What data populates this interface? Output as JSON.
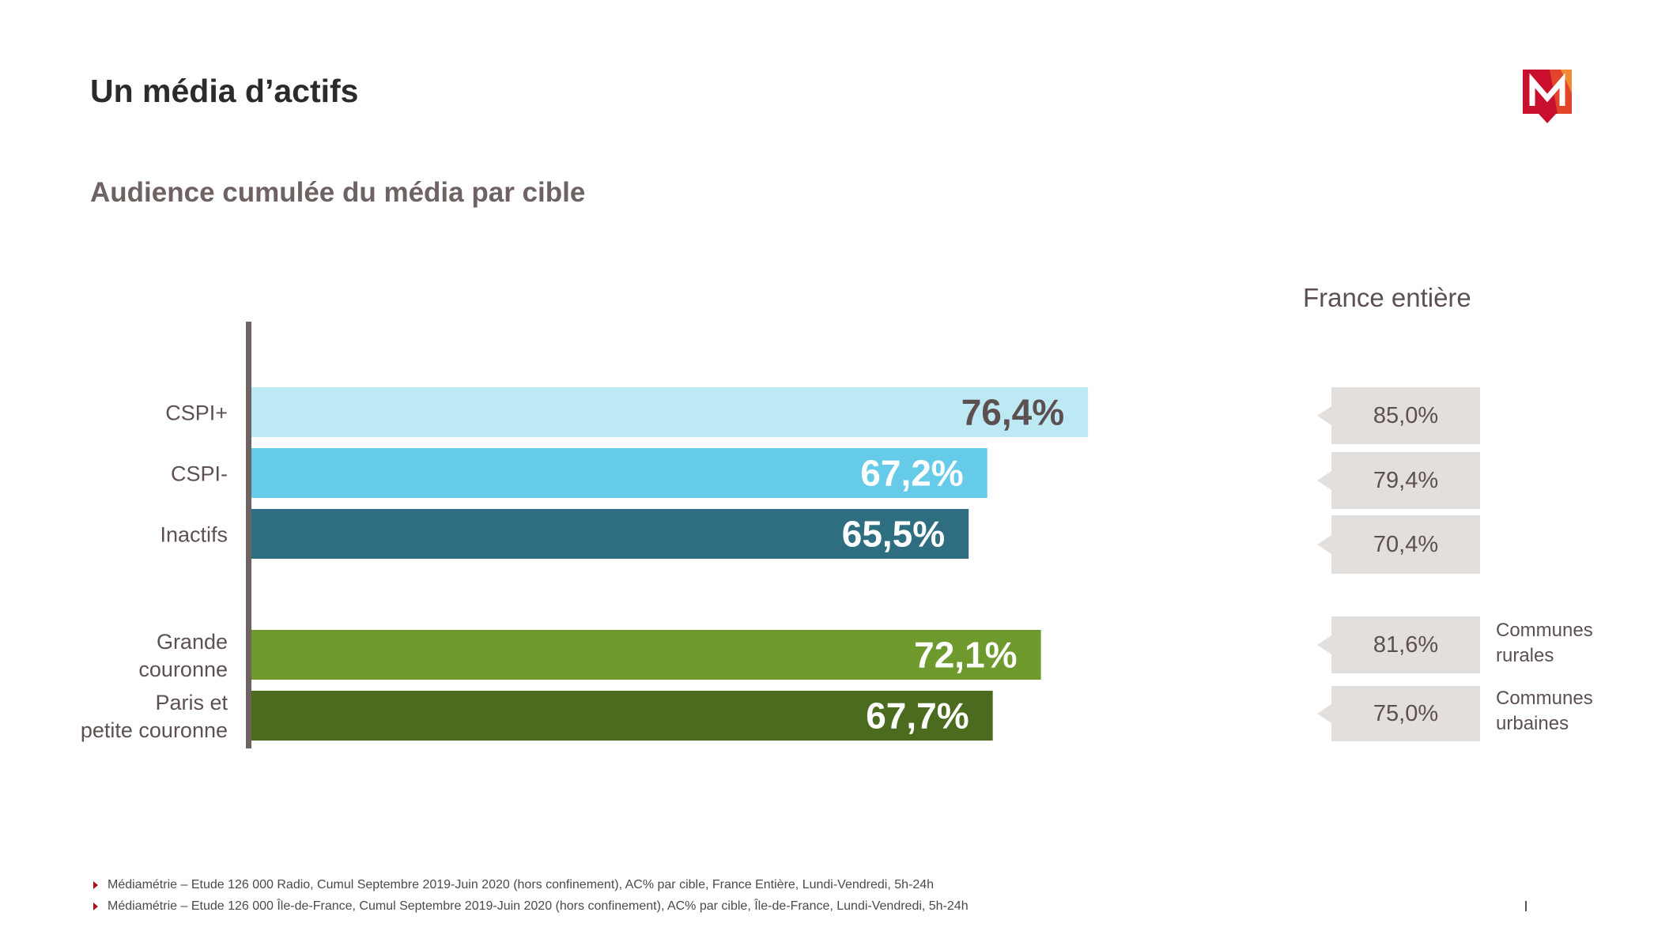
{
  "title": "Un média d’actifs",
  "subtitle": "Audience cumulée du média par cible",
  "logo": {
    "icon": "m-logo-icon",
    "letter": "M",
    "colors": [
      "#c8102e",
      "#e2452a",
      "#f08a34"
    ]
  },
  "chart_data": {
    "type": "bar",
    "orientation": "horizontal",
    "title": "",
    "xlabel": "",
    "ylabel": "",
    "xlim": [
      0,
      100
    ],
    "grid": false,
    "categories": [
      "CSPI+",
      "CSPI-",
      "Inactifs",
      "Grande couronne",
      "Paris et petite couronne"
    ],
    "values": [
      76.4,
      67.2,
      65.5,
      72.1,
      67.7
    ],
    "data_labels": [
      "76,4%",
      "67,2%",
      "65,5%",
      "72,1%",
      "67,7%"
    ],
    "colors": [
      "#bde9f4",
      "#66cbe8",
      "#2e6e80",
      "#6e9a2d",
      "#4b6b1e"
    ],
    "label_colors": [
      "#5d5050",
      "#ffffff",
      "#ffffff",
      "#ffffff",
      "#ffffff"
    ],
    "group": [
      1,
      1,
      1,
      2,
      2
    ]
  },
  "france": {
    "title": "France entière",
    "values": [
      "85,0%",
      "79,4%",
      "70,4%",
      "81,6%",
      "75,0%"
    ],
    "labels": [
      "",
      "",
      "",
      "Communes rurales",
      "Communes urbaines"
    ],
    "box_color": "#e3dfdd"
  },
  "footnotes": [
    "Médiamétrie – Etude 126 000 Radio, Cumul Septembre 2019-Juin 2020 (hors confinement), AC% par cible, France Entière, Lundi-Vendredi, 5h-24h",
    "Médiamétrie – Etude 126 000 Île-de-France, Cumul Septembre 2019-Juin 2020 (hors confinement), AC% par cible, Île-de-France, Lundi-Vendredi, 5h-24h"
  ]
}
